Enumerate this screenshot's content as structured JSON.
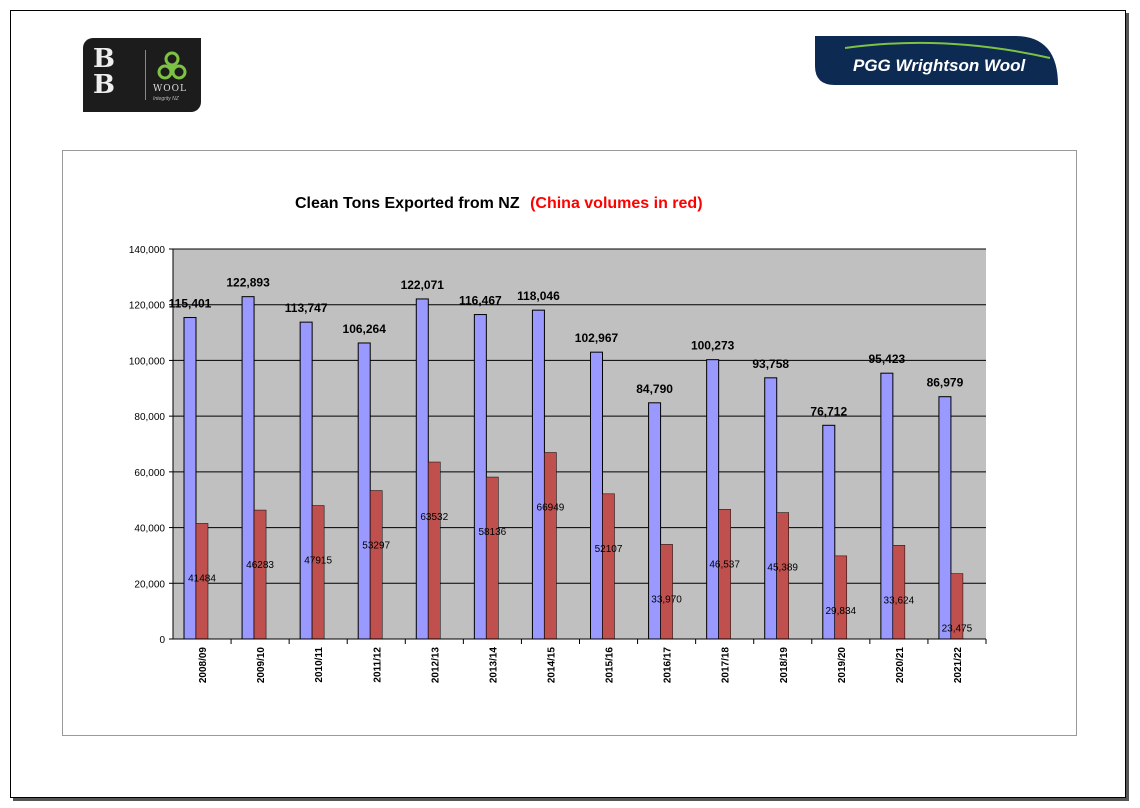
{
  "logos": {
    "left": {
      "letters": "BB",
      "word": "WOOL",
      "sub": "Integrity NZ"
    },
    "right": {
      "text": "PGG Wrightson Wool"
    }
  },
  "colors": {
    "total_bar": "#9999ff",
    "china_bar": "#c0504d",
    "plot_bg": "#c0c0c0",
    "title_accent": "#ff0000",
    "brand_navy": "#0d2a52",
    "brand_green": "#7dc242"
  },
  "chart_data": {
    "type": "bar",
    "title": "Clean Tons Exported from NZ",
    "title_highlight": "(China volumes in red)",
    "xlabel": "",
    "ylabel": "",
    "ylim": [
      0,
      140000
    ],
    "yticks": [
      0,
      20000,
      40000,
      60000,
      80000,
      100000,
      120000,
      140000
    ],
    "ytick_labels": [
      "0",
      "20,000",
      "40,000",
      "60,000",
      "80,000",
      "100,000",
      "120,000",
      "140,000"
    ],
    "grid": true,
    "legend": "none",
    "categories": [
      "2008/09",
      "2009/10",
      "2010/11",
      "2011/12",
      "2012/13",
      "2013/14",
      "2014/15",
      "2015/16",
      "2016/17",
      "2017/18",
      "2018/19",
      "2019/20",
      "2020/21",
      "2021/22"
    ],
    "series": [
      {
        "values": [
          115401,
          122893,
          113747,
          106264,
          122071,
          116467,
          118046,
          102967,
          84790,
          100273,
          93758,
          76712,
          95423,
          86979
        ],
        "labels": [
          "115,401",
          "122,893",
          "113,747",
          "106,264",
          "122,071",
          "116,467",
          "118,046",
          "102,967",
          "84,790",
          "100,273",
          "93,758",
          "76,712",
          "95,423",
          "86,979"
        ]
      },
      {
        "values": [
          41484,
          46283,
          47915,
          53297,
          63532,
          58136,
          66949,
          52107,
          33970,
          46537,
          45389,
          29834,
          33624,
          23475
        ],
        "labels": [
          "41484",
          "46283",
          "47915",
          "53297",
          "63532",
          "58136",
          "66949",
          "52107",
          "33,970",
          "46,537",
          "45,389",
          "29,834",
          "33,624",
          "23,475"
        ]
      }
    ]
  }
}
